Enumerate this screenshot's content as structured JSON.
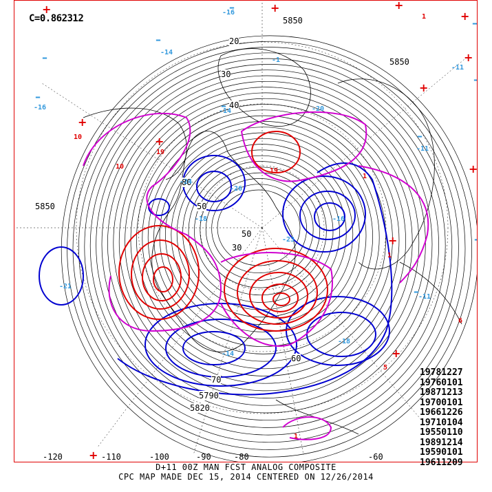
{
  "correlation_label": "C=0.862312",
  "analog_dates": [
    "19781227",
    "19760101",
    "19871213",
    "19700101",
    "19661226",
    "19710104",
    "19550110",
    "19891214",
    "19590101",
    "19611209"
  ],
  "footer": {
    "line1": "D+11 00Z MAN FCST ANALOG COMPOSITE",
    "line2": "CPC MAP MADE DEC 15, 2014 CENTERED ON 12/26/2014"
  },
  "longitude_labels": [
    "-120",
    "-110",
    "-100",
    "-90",
    "-80",
    "-60"
  ],
  "contour_labels": [
    "5850",
    "5850",
    "5850",
    "5820",
    "5790",
    "20",
    "30",
    "40",
    "50",
    "30",
    "50",
    "60",
    "70",
    "80"
  ],
  "anomaly_labels": [
    "-14",
    "-14",
    "-16",
    "-16",
    "-18",
    "-24",
    "-21",
    "-11",
    "-18",
    "-14",
    "-16",
    "-20",
    "-26",
    "-23",
    "-11",
    "-11",
    "-1",
    "10",
    "10",
    "19",
    "19",
    "1",
    "1",
    "1",
    "1",
    "5",
    "6"
  ],
  "colors": {
    "height_contours": "#000000",
    "positive_anomaly": "#e00000",
    "negative_anomaly": "#0000d0",
    "zero_line": "#d000d0",
    "extreme_minus": "#3399dd",
    "extreme_plus": "#e00000",
    "frame": "#e00000"
  }
}
